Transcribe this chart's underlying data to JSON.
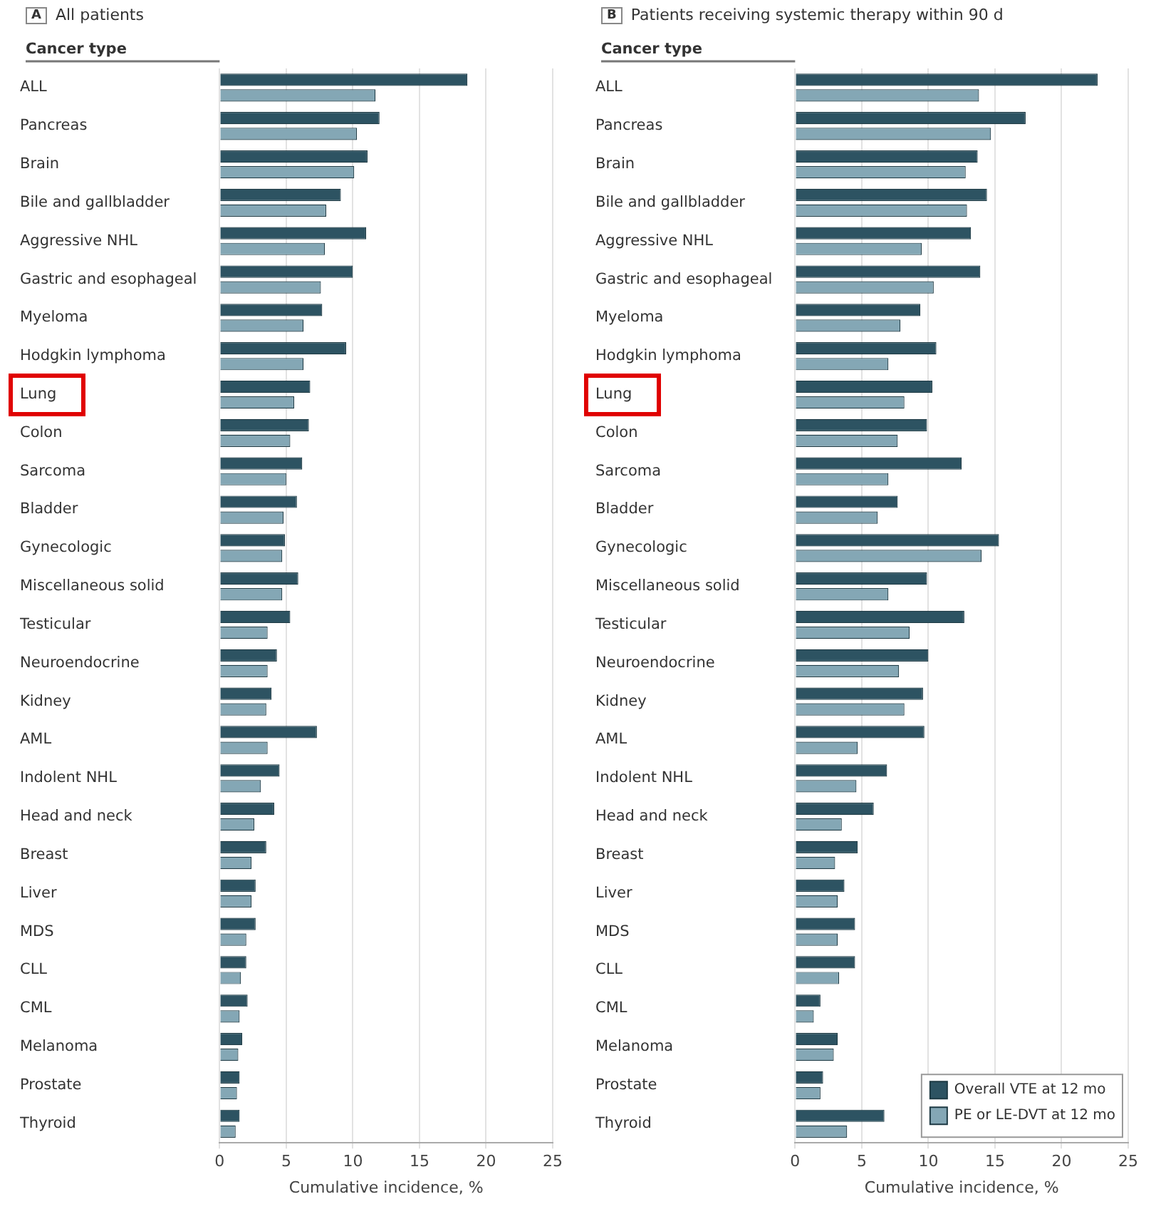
{
  "chart_data": [
    {
      "type": "bar",
      "orientation": "horizontal",
      "title": "All patients",
      "annotations": [
        "A"
      ],
      "ylabel": "Cancer type",
      "xlabel": "Cumulative incidence, %",
      "categories": [
        "ALL",
        "Pancreas",
        "Brain",
        "Bile and gallbladder",
        "Aggressive NHL",
        "Gastric and esophageal",
        "Myeloma",
        "Hodgkin lymphoma",
        "Lung",
        "Colon",
        "Sarcoma",
        "Bladder",
        "Gynecologic",
        "Miscellaneous solid",
        "Testicular",
        "Neuroendocrine",
        "Kidney",
        "AML",
        "Indolent NHL",
        "Head and neck",
        "Breast",
        "Liver",
        "MDS",
        "CLL",
        "CML",
        "Melanoma",
        "Prostate",
        "Thyroid"
      ],
      "series": [
        {
          "color": "#2d5362",
          "values": [
            18.6,
            12.0,
            11.1,
            9.1,
            11.0,
            10.0,
            7.7,
            9.5,
            6.8,
            6.7,
            6.2,
            5.8,
            4.9,
            5.9,
            5.3,
            4.3,
            3.9,
            7.3,
            4.5,
            4.1,
            3.5,
            2.7,
            2.7,
            2.0,
            2.1,
            1.7,
            1.5,
            1.5
          ]
        },
        {
          "color": "#84a7b5",
          "values": [
            11.7,
            10.3,
            10.1,
            8.0,
            7.9,
            7.6,
            6.3,
            6.3,
            5.6,
            5.3,
            5.0,
            4.8,
            4.7,
            4.7,
            3.6,
            3.6,
            3.5,
            3.6,
            3.1,
            2.6,
            2.4,
            2.4,
            2.0,
            1.6,
            1.5,
            1.4,
            1.3,
            1.2
          ]
        }
      ],
      "xlim": [
        0,
        25
      ],
      "xticks": [
        0,
        5,
        10,
        15,
        20,
        25
      ],
      "grid": "x"
    },
    {
      "type": "bar",
      "orientation": "horizontal",
      "title": "Patients receiving systemic therapy within 90 d",
      "annotations": [
        "B"
      ],
      "ylabel": "Cancer type",
      "xlabel": "Cumulative incidence, %",
      "categories": [
        "ALL",
        "Pancreas",
        "Brain",
        "Bile and gallbladder",
        "Aggressive NHL",
        "Gastric and esophageal",
        "Myeloma",
        "Hodgkin lymphoma",
        "Lung",
        "Colon",
        "Sarcoma",
        "Bladder",
        "Gynecologic",
        "Miscellaneous solid",
        "Testicular",
        "Neuroendocrine",
        "Kidney",
        "AML",
        "Indolent NHL",
        "Head and neck",
        "Breast",
        "Liver",
        "MDS",
        "CLL",
        "CML",
        "Melanoma",
        "Prostate",
        "Thyroid"
      ],
      "series": [
        {
          "name": "Overall VTE at 12 mo",
          "color": "#2d5362",
          "values": [
            22.7,
            17.3,
            13.7,
            14.4,
            13.2,
            13.9,
            9.4,
            10.6,
            10.3,
            9.9,
            12.5,
            7.7,
            15.3,
            9.9,
            12.7,
            10.0,
            9.6,
            9.7,
            6.9,
            5.9,
            4.7,
            3.7,
            4.5,
            4.5,
            1.9,
            3.2,
            2.1,
            6.7
          ]
        },
        {
          "name": "PE or LE-DVT at 12 mo",
          "color": "#84a7b5",
          "values": [
            13.8,
            14.7,
            12.8,
            12.9,
            9.5,
            10.4,
            7.9,
            7.0,
            8.2,
            7.7,
            7.0,
            6.2,
            14.0,
            7.0,
            8.6,
            7.8,
            8.2,
            4.7,
            4.6,
            3.5,
            3.0,
            3.2,
            3.2,
            3.3,
            1.4,
            2.9,
            1.9,
            3.9
          ]
        }
      ],
      "xlim": [
        0,
        25
      ],
      "xticks": [
        0,
        5,
        10,
        15,
        20,
        25
      ],
      "grid": "x",
      "legend": "bottom right"
    }
  ]
}
